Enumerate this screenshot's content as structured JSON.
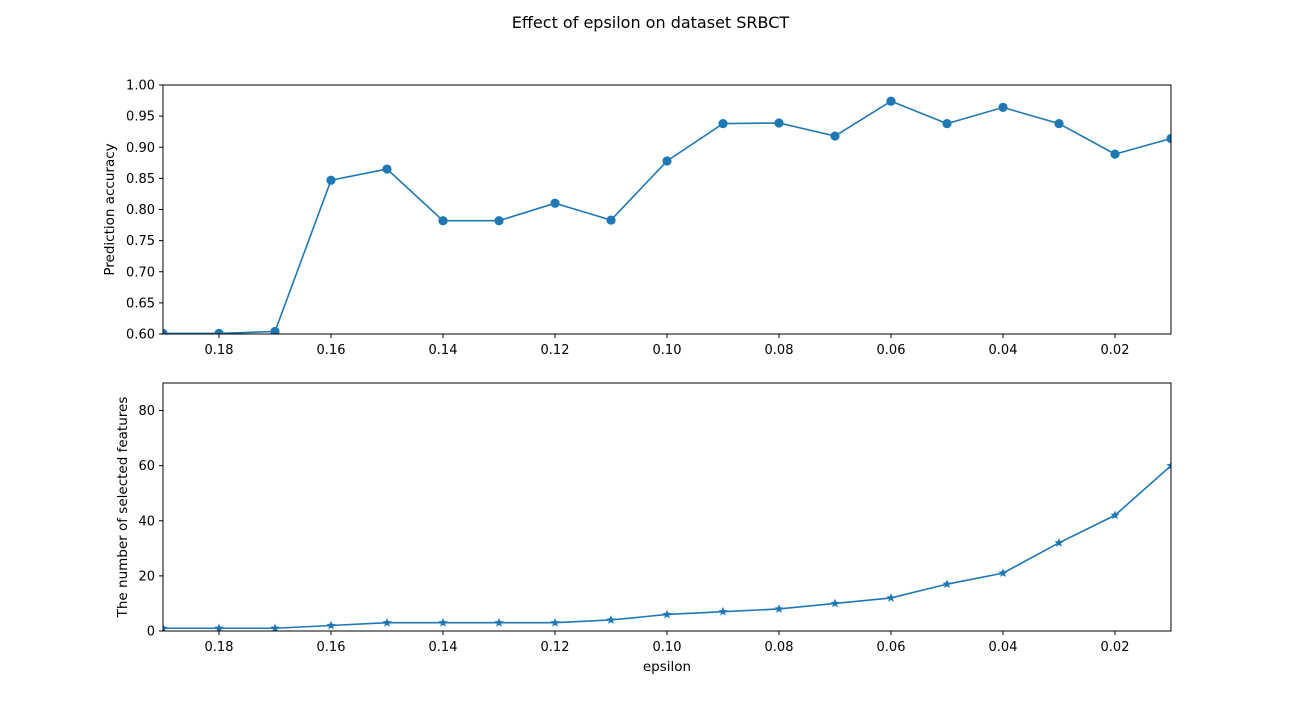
{
  "figure": {
    "title": "Effect of epsilon on dataset SRBCT"
  },
  "colors": {
    "series": "#1f77b4",
    "frame": "#000000",
    "background": "#ffffff"
  },
  "chart_data": [
    {
      "type": "line",
      "marker": "circle",
      "ylabel": "Prediction accuracy",
      "xlabel": "",
      "x_inverted": true,
      "xlim": [
        0.19,
        0.01
      ],
      "ylim": [
        0.6,
        1.0
      ],
      "x_ticks": [
        0.18,
        0.16,
        0.14,
        0.12,
        0.1,
        0.08,
        0.06,
        0.04,
        0.02
      ],
      "x_tick_labels": [
        "0.18",
        "0.16",
        "0.14",
        "0.12",
        "0.10",
        "0.08",
        "0.06",
        "0.04",
        "0.02"
      ],
      "y_ticks": [
        0.6,
        0.65,
        0.7,
        0.75,
        0.8,
        0.85,
        0.9,
        0.95,
        1.0
      ],
      "y_tick_labels": [
        "0.60",
        "0.65",
        "0.70",
        "0.75",
        "0.80",
        "0.85",
        "0.90",
        "0.95",
        "1.00"
      ],
      "grid": false,
      "series": [
        {
          "x": [
            0.19,
            0.18,
            0.17,
            0.16,
            0.15,
            0.14,
            0.13,
            0.12,
            0.11,
            0.1,
            0.09,
            0.08,
            0.07,
            0.06,
            0.05,
            0.04,
            0.03,
            0.02,
            0.01
          ],
          "values": [
            0.601,
            0.601,
            0.604,
            0.847,
            0.865,
            0.782,
            0.782,
            0.81,
            0.783,
            0.878,
            0.938,
            0.939,
            0.918,
            0.974,
            0.938,
            0.964,
            0.938,
            0.889,
            0.914
          ]
        }
      ]
    },
    {
      "type": "line",
      "marker": "star",
      "ylabel": "The number of selected features",
      "xlabel": "epsilon",
      "x_inverted": true,
      "xlim": [
        0.19,
        0.01
      ],
      "ylim": [
        0,
        90
      ],
      "x_ticks": [
        0.18,
        0.16,
        0.14,
        0.12,
        0.1,
        0.08,
        0.06,
        0.04,
        0.02
      ],
      "x_tick_labels": [
        "0.18",
        "0.16",
        "0.14",
        "0.12",
        "0.10",
        "0.08",
        "0.06",
        "0.04",
        "0.02"
      ],
      "y_ticks": [
        0,
        20,
        40,
        60,
        80
      ],
      "y_tick_labels": [
        "0",
        "20",
        "40",
        "60",
        "80"
      ],
      "grid": false,
      "series": [
        {
          "x": [
            0.19,
            0.18,
            0.17,
            0.16,
            0.15,
            0.14,
            0.13,
            0.12,
            0.11,
            0.1,
            0.09,
            0.08,
            0.07,
            0.06,
            0.05,
            0.04,
            0.03,
            0.02,
            0.01
          ],
          "values": [
            1,
            1,
            1,
            2,
            3,
            3,
            3,
            3,
            4,
            6,
            7,
            8,
            10,
            12,
            17,
            21,
            32,
            42,
            60
          ]
        }
      ]
    }
  ]
}
